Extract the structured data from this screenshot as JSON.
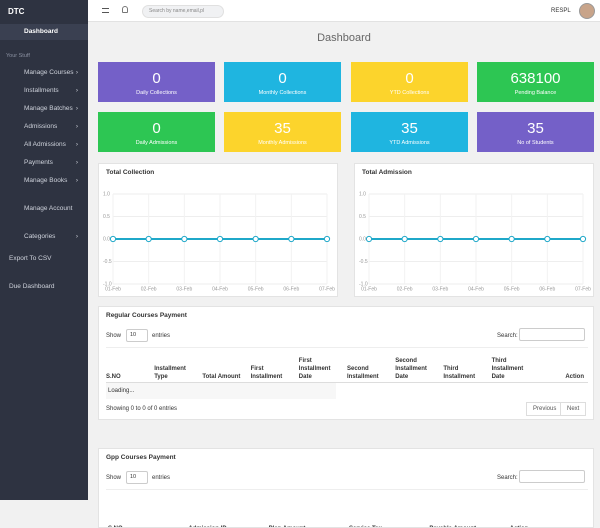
{
  "sidebar": {
    "brand": "DTC",
    "active": "Dashboard",
    "section": "Your Stuff",
    "items": [
      "Manage Courses",
      "Installments",
      "Manage Batches",
      "Admissions",
      "All Admissions",
      "Payments",
      "Manage Books"
    ],
    "account": "Manage Account",
    "categories": "Categories",
    "export": "Export To CSV",
    "due": "Due Dashboard"
  },
  "header": {
    "search_placeholder": "Search by name,email,pl",
    "user": "RESPL"
  },
  "page_title": "Dashboard",
  "stats": [
    {
      "value": 0,
      "label": "Daily Collections",
      "color": "#7460c8"
    },
    {
      "value": 0,
      "label": "Monthly Collections",
      "color": "#1fb5e0"
    },
    {
      "value": 0,
      "label": "YTD Collections",
      "color": "#fcd42c"
    },
    {
      "value": 638100,
      "label": "Pending Balance",
      "color": "#2dc653"
    },
    {
      "value": 0,
      "label": "Daily Admissions",
      "color": "#2dc653"
    },
    {
      "value": 35,
      "label": "Monthly Admissions",
      "color": "#fcd42c"
    },
    {
      "value": 35,
      "label": "YTD Admissions",
      "color": "#1fb5e0"
    },
    {
      "value": 35,
      "label": "No of Students",
      "color": "#7460c8"
    }
  ],
  "charts": [
    {
      "type": "line",
      "title": "Total Collection",
      "categories": [
        "01-Feb",
        "02-Feb",
        "03-Feb",
        "04-Feb",
        "05-Feb",
        "06-Feb",
        "07-Feb"
      ],
      "values": [
        0,
        0,
        0,
        0,
        0,
        0,
        0
      ],
      "color": "#1fa8c9",
      "ylim": [
        -1,
        1
      ],
      "yticks": [
        {
          "value": 1,
          "label": "1.0"
        },
        {
          "value": 0.5,
          "label": "0.5"
        },
        {
          "value": 0,
          "label": "0.0"
        },
        {
          "value": -0.5,
          "label": "-0.5"
        },
        {
          "value": -1,
          "label": "-1.0"
        }
      ],
      "grid": true
    },
    {
      "type": "line",
      "title": "Total Admission",
      "categories": [
        "01-Feb",
        "02-Feb",
        "03-Feb",
        "04-Feb",
        "05-Feb",
        "06-Feb",
        "07-Feb"
      ],
      "values": [
        0,
        0,
        0,
        0,
        0,
        0,
        0
      ],
      "color": "#1fa8c9",
      "ylim": [
        -1,
        1
      ],
      "yticks": [
        {
          "value": 1,
          "label": "1.0"
        },
        {
          "value": 0.5,
          "label": "0.5"
        },
        {
          "value": 0,
          "label": "0.0"
        },
        {
          "value": -0.5,
          "label": "-0.5"
        },
        {
          "value": -1,
          "label": "-1.0"
        }
      ],
      "grid": true
    }
  ],
  "tables": [
    {
      "title": "Regular Courses Payment",
      "show": "Show",
      "length": "10",
      "entries": "entries",
      "search": "Search:",
      "columns": [
        "S.NO",
        "Installment Type",
        "Total Amount",
        "First Installment",
        "First Installment Date",
        "Second Installment",
        "Second Installment Date",
        "Third Installment",
        "Third Installment Date",
        "Action"
      ],
      "loading": "Loading...",
      "info": "Showing 0 to 0 of 0 entries",
      "prev": "Previous",
      "next": "Next"
    },
    {
      "title": "Gpp Courses Payment",
      "show": "Show",
      "length": "10",
      "entries": "entries",
      "search": "Search:",
      "columns": [
        "S.NO",
        "Admission ID",
        "Plan Amount",
        "Service Tax",
        "Payable Amount",
        "Action"
      ]
    }
  ]
}
